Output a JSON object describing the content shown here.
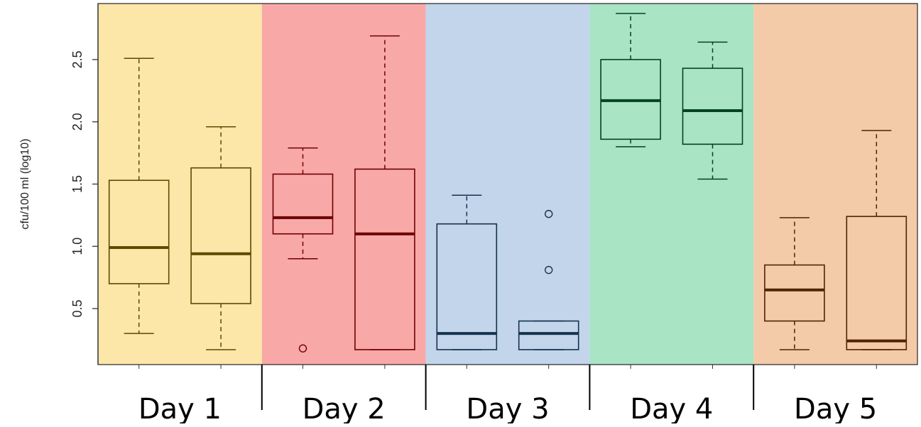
{
  "chart_data": {
    "type": "boxplot",
    "title": "",
    "xlabel": "",
    "ylabel": "cfu/100 ml (log10)",
    "ylim": [
      0.05,
      2.95
    ],
    "yticks": [
      0.5,
      1.0,
      1.5,
      2.0,
      2.5
    ],
    "ytick_labels": [
      "0.5",
      "1.0",
      "1.5",
      "2.0",
      "2.5"
    ],
    "grid": false,
    "legend": "none",
    "groups": [
      {
        "label": "Day 1",
        "fill": "#fce6a8",
        "stroke": "#5c4a00"
      },
      {
        "label": "Day 2",
        "fill": "#f9a8a8",
        "stroke": "#6e0000"
      },
      {
        "label": "Day 3",
        "fill": "#c2d5ea",
        "stroke": "#16324f"
      },
      {
        "label": "Day 4",
        "fill": "#a9e4c5",
        "stroke": "#004420"
      },
      {
        "label": "Day 5",
        "fill": "#f3cba9",
        "stroke": "#4f2400"
      }
    ],
    "boxes": [
      {
        "group": 0,
        "whisker_low": 0.3,
        "q1": 0.7,
        "median": 0.99,
        "q3": 1.53,
        "whisker_high": 2.51,
        "outliers": []
      },
      {
        "group": 0,
        "whisker_low": 0.17,
        "q1": 0.54,
        "median": 0.94,
        "q3": 1.63,
        "whisker_high": 1.96,
        "outliers": []
      },
      {
        "group": 1,
        "whisker_low": 0.9,
        "q1": 1.1,
        "median": 1.23,
        "q3": 1.58,
        "whisker_high": 1.79,
        "outliers": [
          0.18
        ]
      },
      {
        "group": 1,
        "whisker_low": 0.17,
        "q1": 0.17,
        "median": 1.1,
        "q3": 1.62,
        "whisker_high": 2.69,
        "outliers": []
      },
      {
        "group": 2,
        "whisker_low": 0.17,
        "q1": 0.17,
        "median": 0.3,
        "q3": 1.18,
        "whisker_high": 1.41,
        "outliers": []
      },
      {
        "group": 2,
        "whisker_low": 0.17,
        "q1": 0.17,
        "median": 0.3,
        "q3": 0.4,
        "whisker_high": 0.4,
        "outliers": [
          0.81,
          1.26
        ]
      },
      {
        "group": 3,
        "whisker_low": 1.8,
        "q1": 1.86,
        "median": 2.17,
        "q3": 2.5,
        "whisker_high": 2.87,
        "outliers": []
      },
      {
        "group": 3,
        "whisker_low": 1.54,
        "q1": 1.82,
        "median": 2.09,
        "q3": 2.43,
        "whisker_high": 2.64,
        "outliers": []
      },
      {
        "group": 4,
        "whisker_low": 0.17,
        "q1": 0.4,
        "median": 0.65,
        "q3": 0.85,
        "whisker_high": 1.23,
        "outliers": []
      },
      {
        "group": 4,
        "whisker_low": 0.17,
        "q1": 0.17,
        "median": 0.24,
        "q3": 1.24,
        "whisker_high": 1.93,
        "outliers": []
      }
    ]
  }
}
